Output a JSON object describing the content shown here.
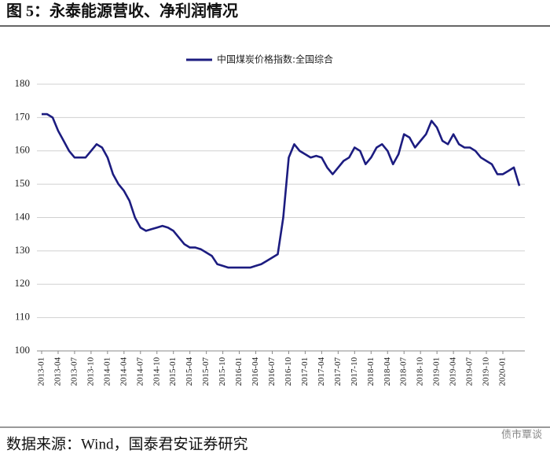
{
  "chart_data": {
    "type": "line",
    "title": "图 5：永泰能源营收、净利润情况",
    "source": "数据来源：Wind，国泰君安证券研究",
    "watermark": "债市覃谈",
    "categories": [
      "2013-01",
      null,
      null,
      "2013-04",
      null,
      null,
      "2013-07",
      null,
      null,
      "2013-10",
      null,
      null,
      "2014-01",
      null,
      null,
      "2014-04",
      null,
      null,
      "2014-07",
      null,
      null,
      "2014-10",
      null,
      null,
      "2015-01",
      null,
      null,
      "2015-04",
      null,
      null,
      "2015-07",
      null,
      null,
      "2015-10",
      null,
      null,
      "2016-01",
      null,
      null,
      "2016-04",
      null,
      null,
      "2016-07",
      null,
      null,
      "2016-10",
      null,
      null,
      "2017-01",
      null,
      null,
      "2017-04",
      null,
      null,
      "2017-07",
      null,
      null,
      "2017-10",
      null,
      null,
      "2018-01",
      null,
      null,
      "2018-04",
      null,
      null,
      "2018-07",
      null,
      null,
      "2018-10",
      null,
      null,
      "2019-01",
      null,
      null,
      "2019-04",
      null,
      null,
      "2019-07",
      null,
      null,
      "2019-10",
      null,
      null,
      "2020-01",
      null,
      null,
      null
    ],
    "series": [
      {
        "name": "中国煤炭价格指数:全国综合",
        "color": "#1c1c80",
        "values": [
          171,
          171,
          170,
          166,
          163,
          160,
          158,
          158,
          158,
          160,
          162,
          161,
          158,
          153,
          150,
          148,
          145,
          140,
          137,
          136,
          136.5,
          137,
          137.5,
          137,
          136,
          134,
          132,
          131,
          131,
          130.5,
          129.5,
          128.5,
          126,
          125.5,
          125,
          125,
          125,
          125,
          125,
          125.5,
          126,
          127,
          128,
          129,
          140,
          158,
          162,
          160,
          159,
          158,
          158.5,
          158,
          155,
          153,
          155,
          157,
          158,
          161,
          160,
          156,
          158,
          161,
          162,
          160,
          156,
          159,
          165,
          164,
          161,
          163,
          165,
          169,
          167,
          163,
          162,
          165,
          162,
          161,
          161,
          160,
          158,
          157,
          156,
          153,
          153,
          154,
          155,
          149.5
        ]
      }
    ],
    "ylim": [
      100,
      180
    ],
    "yticks": [
      100,
      110,
      120,
      130,
      140,
      150,
      160,
      170,
      180
    ],
    "grid": true
  }
}
